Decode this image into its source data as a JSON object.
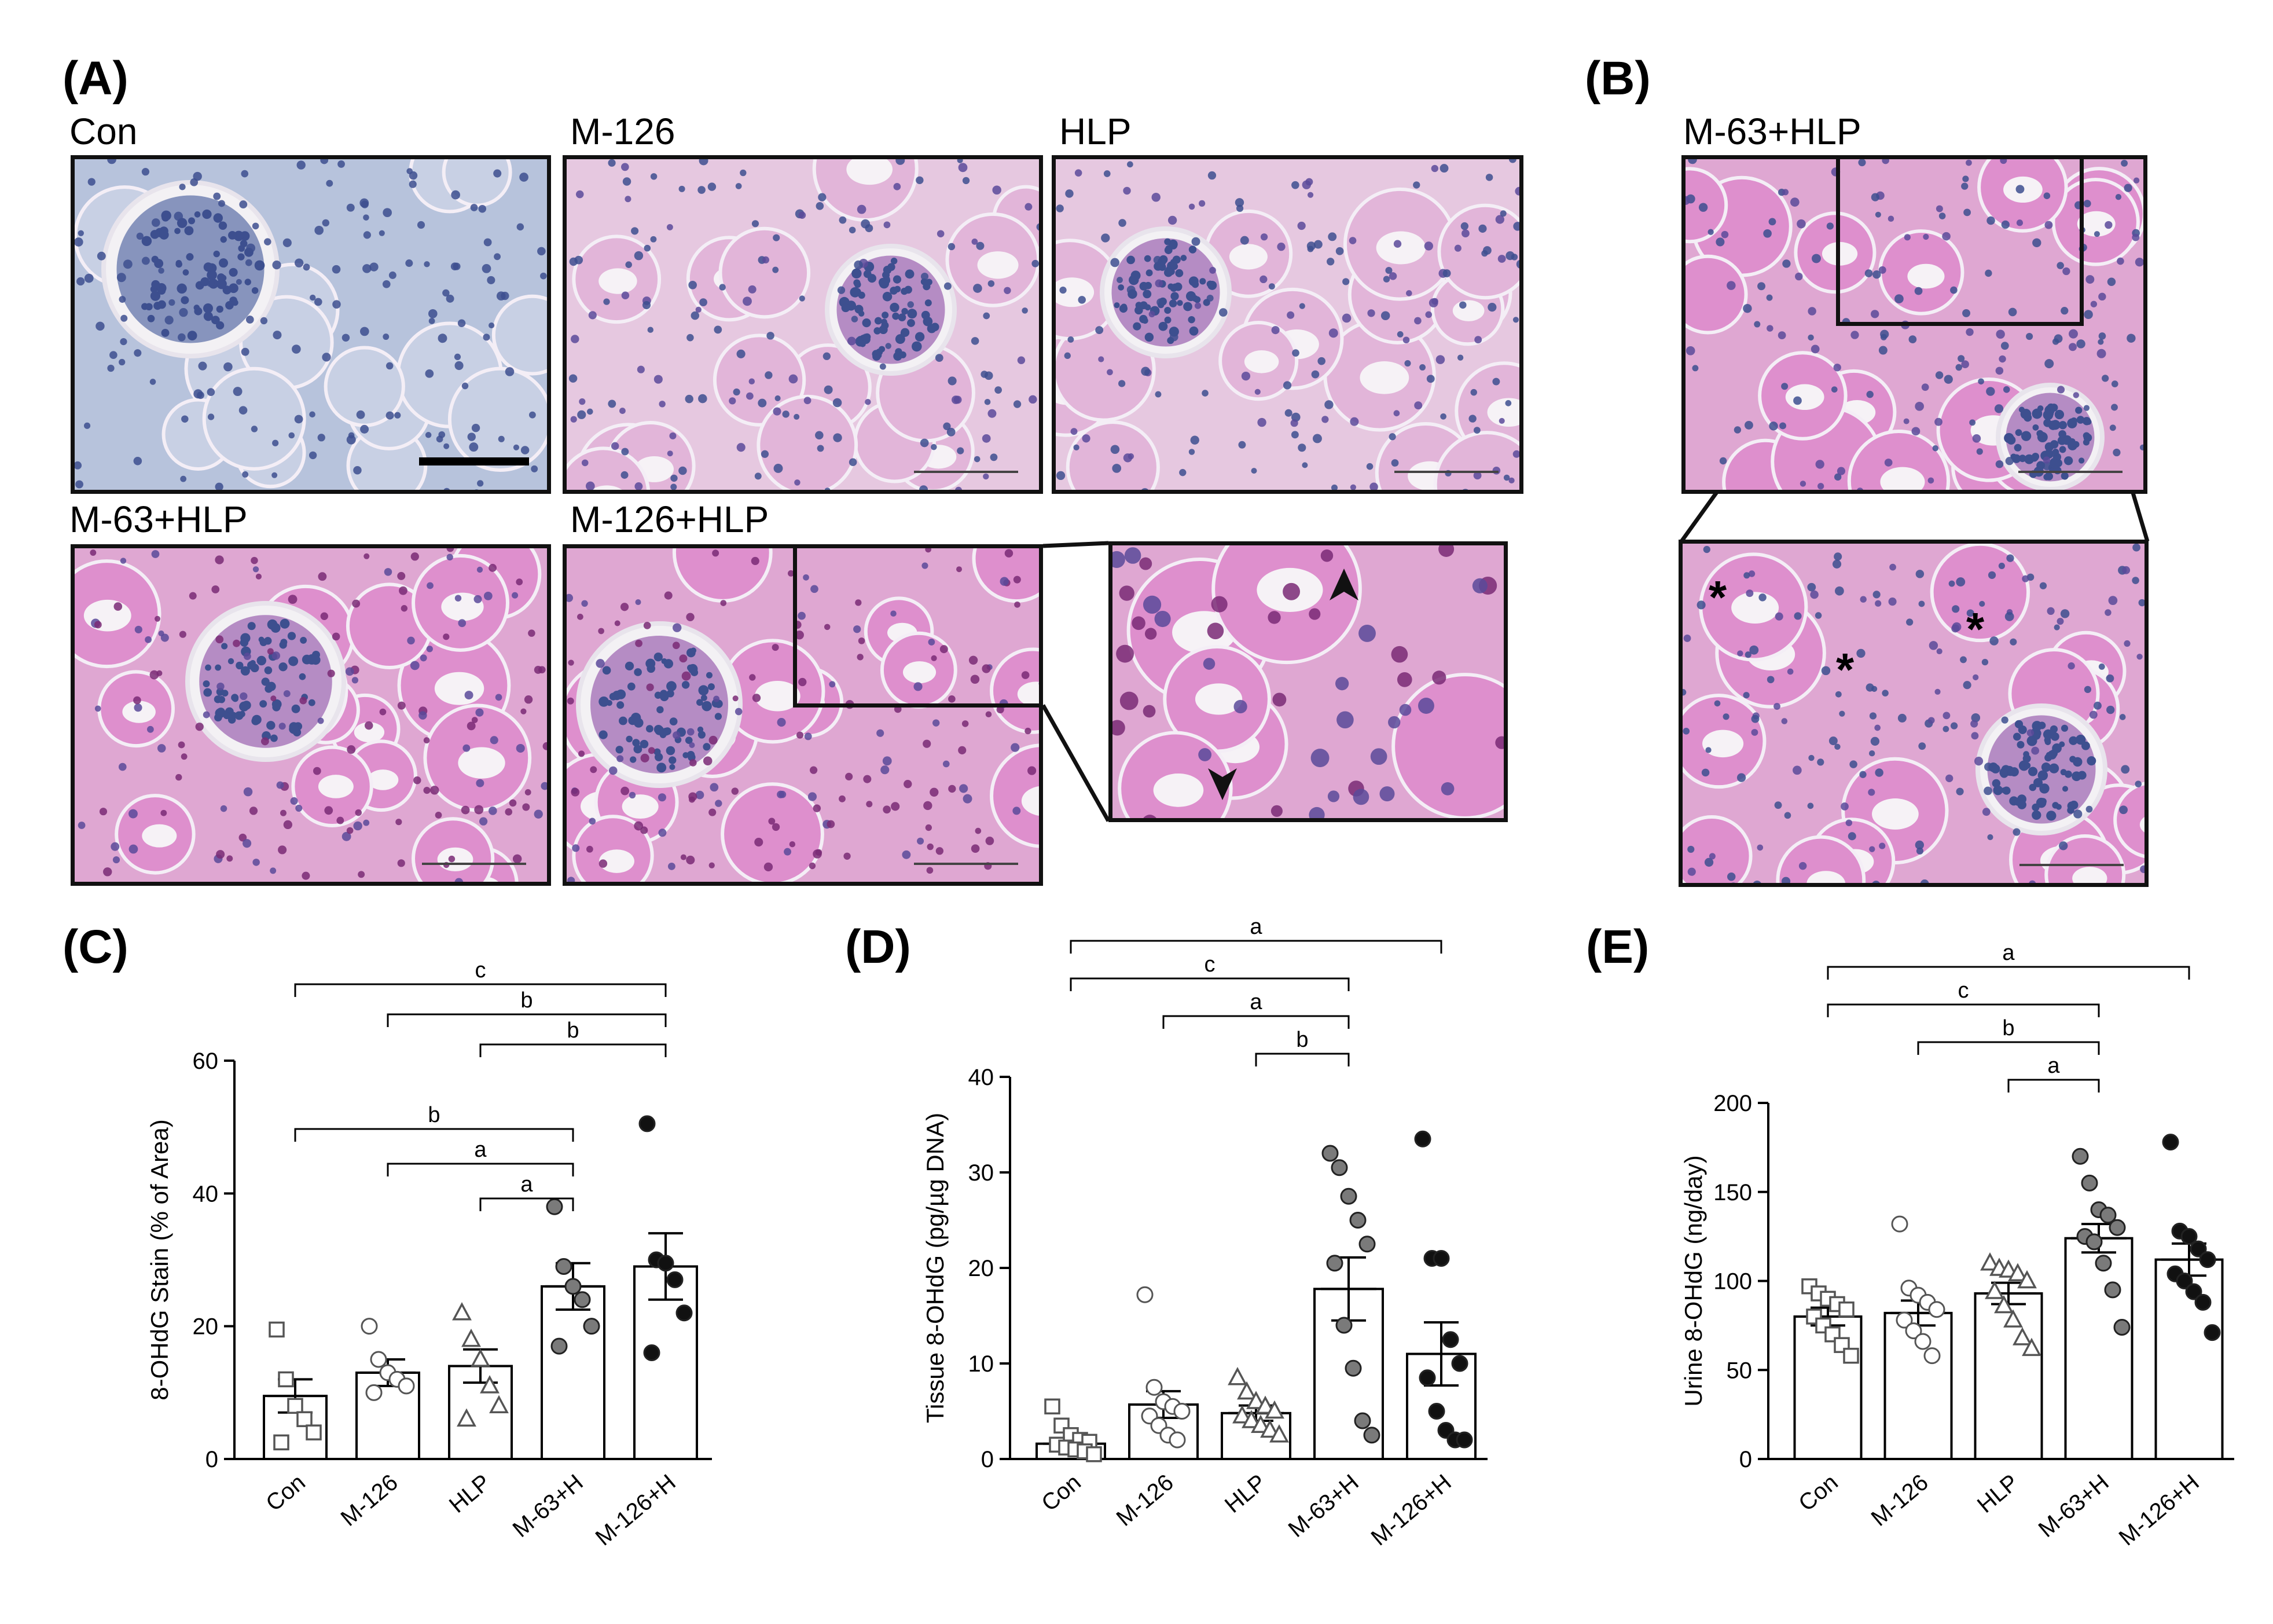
{
  "panels": {
    "A": {
      "letter": "(A)"
    },
    "B": {
      "letter": "(B)"
    },
    "C": {
      "letter": "(C)"
    },
    "D": {
      "letter": "(D)"
    },
    "E": {
      "letter": "(E)"
    }
  },
  "micrographs": {
    "con": {
      "label": "Con"
    },
    "m126": {
      "label": "M-126"
    },
    "hlp": {
      "label": "HLP"
    },
    "m63hlp": {
      "label": "M-63+HLP"
    },
    "m126hlp": {
      "label": "M-126+HLP"
    },
    "b_top": {
      "label": "M-63+HLP"
    },
    "asterisk": "*"
  },
  "colors": {
    "hematoxylin": "#3d4f8f",
    "pink_stain": "#e9a5d6",
    "con_background": "#b7c3dc",
    "open_marker": "#ffffff",
    "grey_marker": "#7a7a7a",
    "black_marker": "#111111"
  },
  "chart_data": [
    {
      "id": "C",
      "type": "bar",
      "ylabel": "8-OHdG Stain (% of Area)",
      "ylim": [
        0,
        60
      ],
      "yticks": [
        0,
        20,
        40,
        60
      ],
      "categories": [
        "Con",
        "M-126",
        "HLP",
        "M-63+H",
        "M-126+H"
      ],
      "means": [
        9.5,
        13,
        14,
        26,
        29
      ],
      "sem": [
        2.5,
        2,
        2.5,
        3.5,
        5
      ],
      "points": [
        [
          19.5,
          12,
          8,
          6,
          4,
          2.5
        ],
        [
          20,
          15,
          13,
          12,
          11,
          10
        ],
        [
          22,
          18,
          15,
          11,
          8,
          6
        ],
        [
          38,
          29,
          26,
          24,
          20,
          17
        ],
        [
          50.5,
          30,
          29.5,
          27,
          22,
          16
        ]
      ],
      "marker_shapes": [
        "square",
        "circle",
        "triangle",
        "circle",
        "circle"
      ],
      "marker_fills": [
        "open",
        "open",
        "open",
        "grey",
        "black"
      ],
      "significance": [
        {
          "from": 0,
          "to": 4,
          "label": "c"
        },
        {
          "from": 1,
          "to": 4,
          "label": "b"
        },
        {
          "from": 2,
          "to": 4,
          "label": "b"
        },
        {
          "from": 0,
          "to": 3,
          "label": "b"
        },
        {
          "from": 1,
          "to": 3,
          "label": "a"
        },
        {
          "from": 2,
          "to": 3,
          "label": "a"
        }
      ]
    },
    {
      "id": "D",
      "type": "bar",
      "ylabel": "Tissue 8-OHdG (pg/µg DNA)",
      "ylim": [
        0,
        40
      ],
      "yticks": [
        0,
        10,
        20,
        30,
        40
      ],
      "categories": [
        "Con",
        "M-126",
        "HLP",
        "M-63+H",
        "M-126+H"
      ],
      "means": [
        1.6,
        5.7,
        4.8,
        17.8,
        11
      ],
      "sem": [
        0.5,
        1.4,
        0.8,
        3.3,
        3.3
      ],
      "points": [
        [
          5.5,
          3.5,
          2.5,
          2,
          1.8,
          1.5,
          1.2,
          1,
          0.8,
          0.5
        ],
        [
          17.2,
          7.5,
          6,
          5.5,
          5,
          4.5,
          3.5,
          2.5,
          2
        ],
        [
          8.5,
          7,
          6,
          5.5,
          5,
          4.5,
          4,
          3.5,
          3,
          2.5
        ],
        [
          32,
          30.5,
          27.5,
          25,
          22.5,
          20.5,
          14,
          9.5,
          4,
          2.5
        ],
        [
          33.5,
          21,
          21,
          12.5,
          10,
          8.5,
          5,
          3,
          2,
          2
        ]
      ],
      "marker_shapes": [
        "square",
        "circle",
        "triangle",
        "circle",
        "circle"
      ],
      "marker_fills": [
        "open",
        "open",
        "open",
        "grey",
        "black"
      ],
      "significance": [
        {
          "from": 0,
          "to": 4,
          "label": "a"
        },
        {
          "from": 0,
          "to": 3,
          "label": "c"
        },
        {
          "from": 1,
          "to": 3,
          "label": "a"
        },
        {
          "from": 2,
          "to": 3,
          "label": "b"
        }
      ]
    },
    {
      "id": "E",
      "type": "bar",
      "ylabel": "Urine 8-OHdG (ng/day)",
      "ylim": [
        0,
        200
      ],
      "yticks": [
        0,
        50,
        100,
        150,
        200
      ],
      "categories": [
        "Con",
        "M-126",
        "HLP",
        "M-63+H",
        "M-126+H"
      ],
      "means": [
        80,
        82,
        93,
        124,
        112
      ],
      "sem": [
        5,
        7,
        6,
        8,
        9
      ],
      "points": [
        [
          97,
          93,
          90,
          87,
          84,
          80,
          75,
          70,
          64,
          58
        ],
        [
          132,
          96,
          92,
          88,
          84,
          78,
          72,
          66,
          58
        ],
        [
          110,
          107,
          106,
          104,
          100,
          94,
          86,
          78,
          68,
          62
        ],
        [
          170,
          155,
          140,
          137,
          130,
          125,
          122,
          110,
          95,
          74
        ],
        [
          178,
          128,
          125,
          118,
          112,
          104,
          100,
          94,
          88,
          71
        ]
      ],
      "marker_shapes": [
        "square",
        "circle",
        "triangle",
        "circle",
        "circle"
      ],
      "marker_fills": [
        "open",
        "open",
        "open",
        "grey",
        "black"
      ],
      "significance": [
        {
          "from": 0,
          "to": 4,
          "label": "a"
        },
        {
          "from": 0,
          "to": 3,
          "label": "c"
        },
        {
          "from": 1,
          "to": 3,
          "label": "b"
        },
        {
          "from": 2,
          "to": 3,
          "label": "a"
        }
      ]
    }
  ]
}
